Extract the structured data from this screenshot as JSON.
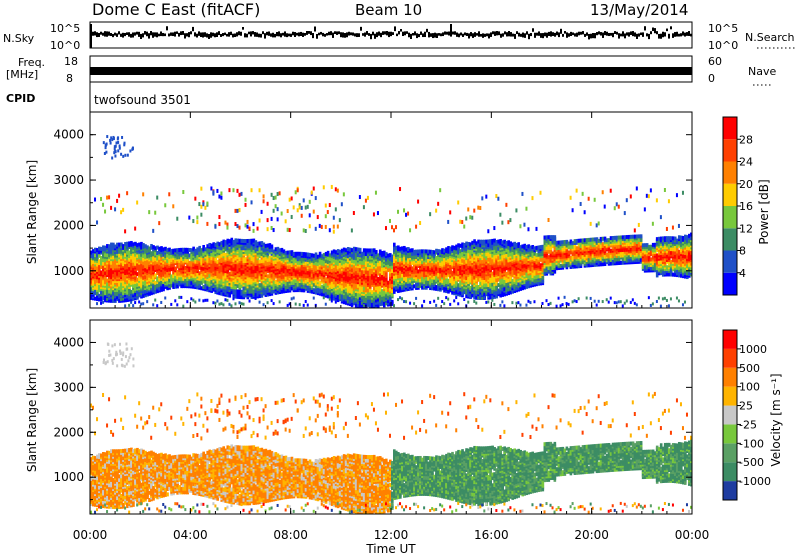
{
  "header": {
    "title": "Dome C East (fitACF)",
    "beam": "Beam 10",
    "date": "13/May/2014"
  },
  "top_panels": {
    "nsky": {
      "label": "N.Sky",
      "ticks": [
        "10^5",
        "10^0"
      ]
    },
    "nsearch": {
      "label": "N.Search",
      "ticks": [
        "10^5",
        "10^0"
      ]
    },
    "freq": {
      "label_line1": "Freq.",
      "label_line2": "[MHz]",
      "ticks": [
        "18",
        "8"
      ]
    },
    "nave": {
      "label": "Nave",
      "ticks": [
        "60",
        "0"
      ]
    },
    "cpid": {
      "label": "CPID",
      "value": "twofsound 3501"
    }
  },
  "chart_data": [
    {
      "type": "heatmap",
      "title": "",
      "xlabel": "Time UT",
      "ylabel": "Slant Range [km]",
      "xlim": [
        0,
        24
      ],
      "ylim": [
        180,
        4500
      ],
      "x_tick_labels": [
        "00:00",
        "04:00",
        "08:00",
        "12:00",
        "16:00",
        "20:00",
        "00:00"
      ],
      "y_tick_labels": [
        "1000",
        "2000",
        "3000",
        "4000"
      ],
      "colorbar": {
        "label": "Power [dB]",
        "tick_labels": [
          "4",
          "8",
          "12",
          "16",
          "20",
          "24",
          "28"
        ],
        "colors": [
          "#0000ff",
          "#1f50c8",
          "#3c8c64",
          "#78c83c",
          "#ffcc00",
          "#ff8000",
          "#ff4000",
          "#ff0000"
        ]
      }
    },
    {
      "type": "heatmap",
      "title": "",
      "xlabel": "Time UT",
      "ylabel": "Slant Range [km]",
      "xlim": [
        0,
        24
      ],
      "ylim": [
        180,
        4500
      ],
      "x_tick_labels": [
        "00:00",
        "04:00",
        "08:00",
        "12:00",
        "16:00",
        "20:00",
        "00:00"
      ],
      "y_tick_labels": [
        "1000",
        "2000",
        "3000",
        "4000"
      ],
      "colorbar": {
        "label": "Velocity [m s⁻¹]",
        "tick_labels": [
          "1000",
          "500",
          "100",
          "25",
          "-25",
          "-100",
          "-500",
          "-1000"
        ],
        "colors": [
          "#1e3ca0",
          "#3c8c64",
          "#5aa064",
          "#78c83c",
          "#c8c8c8",
          "#ffb400",
          "#ff8000",
          "#ff4000",
          "#ff0000"
        ]
      }
    }
  ]
}
